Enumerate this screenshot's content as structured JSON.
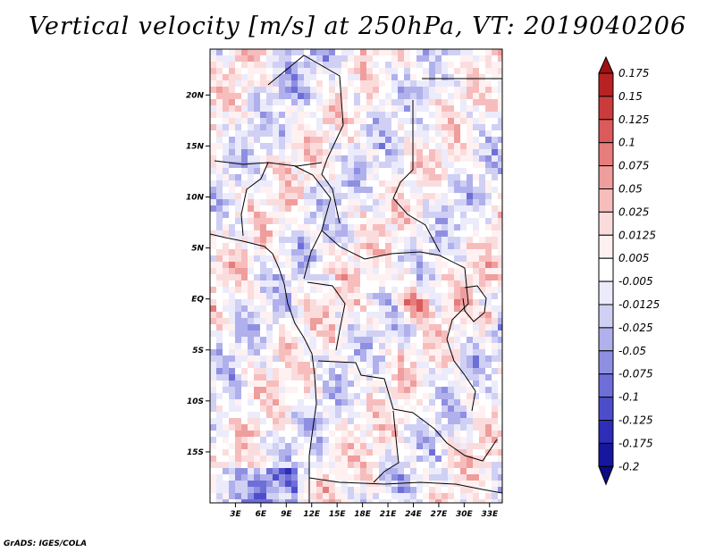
{
  "title": "Vertical velocity [m/s] at 250hPa, VT: 2019040206",
  "credit": "GrADS: IGES/COLA",
  "map": {
    "lat_labels": [
      "20N",
      "15N",
      "10N",
      "5N",
      "EQ",
      "5S",
      "10S",
      "15S"
    ],
    "lat_values": [
      20,
      15,
      10,
      5,
      0,
      -5,
      -10,
      -15
    ],
    "lon_labels": [
      "3E",
      "6E",
      "9E",
      "12E",
      "15E",
      "18E",
      "21E",
      "24E",
      "27E",
      "30E",
      "33E"
    ],
    "lon_values": [
      3,
      6,
      9,
      12,
      15,
      18,
      21,
      24,
      27,
      30,
      33
    ],
    "lon_range": [
      0,
      34.5
    ],
    "lat_range": [
      -20,
      24.5
    ]
  },
  "colorbar": {
    "labels": [
      "0.175",
      "0.15",
      "0.125",
      "0.1",
      "0.075",
      "0.05",
      "0.025",
      "0.0125",
      "0.005",
      "-0.005",
      "-0.0125",
      "-0.025",
      "-0.05",
      "-0.075",
      "-0.1",
      "-0.125",
      "-0.175",
      "-0.2"
    ],
    "colors": [
      "#a01010",
      "#b82222",
      "#cc3b3b",
      "#dc5a5a",
      "#e77c7c",
      "#f09d9d",
      "#f7bdbd",
      "#fbdcdc",
      "#fff1f1",
      "#ffffff",
      "#ebebfb",
      "#d0d0f4",
      "#b0b0ec",
      "#8f8fe2",
      "#6e6ed8",
      "#4d4dcb",
      "#2d2db8",
      "#16169e",
      "#0b0b82"
    ]
  }
}
